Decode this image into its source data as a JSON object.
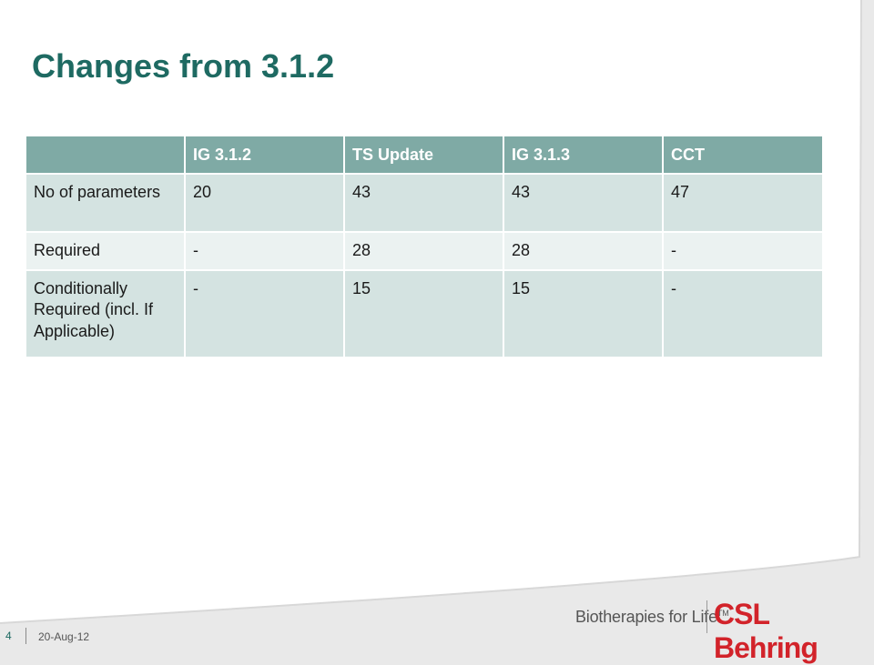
{
  "slide": {
    "title": "Changes from 3.1.2",
    "page_number": "4",
    "date": "20-Aug-12",
    "tagline": "Biotherapies for Life",
    "tagline_tm": "TM",
    "brand": "CSL Behring"
  },
  "table": {
    "headers": [
      "",
      "IG 3.1.2",
      "TS Update",
      "IG 3.1.3",
      "CCT"
    ],
    "rows": [
      [
        "No of parameters",
        "20",
        "43",
        "43",
        "47"
      ],
      [
        "Required",
        "-",
        "28",
        "28",
        "-"
      ],
      [
        "Conditionally Required (incl. If Applicable)",
        "-",
        "15",
        "15",
        "-"
      ]
    ]
  },
  "colors": {
    "title": "#1e6a62",
    "header_bg": "#7faaa5",
    "row_dark": "#d4e3e1",
    "row_light": "#ebf2f1",
    "brand": "#d2232a"
  }
}
